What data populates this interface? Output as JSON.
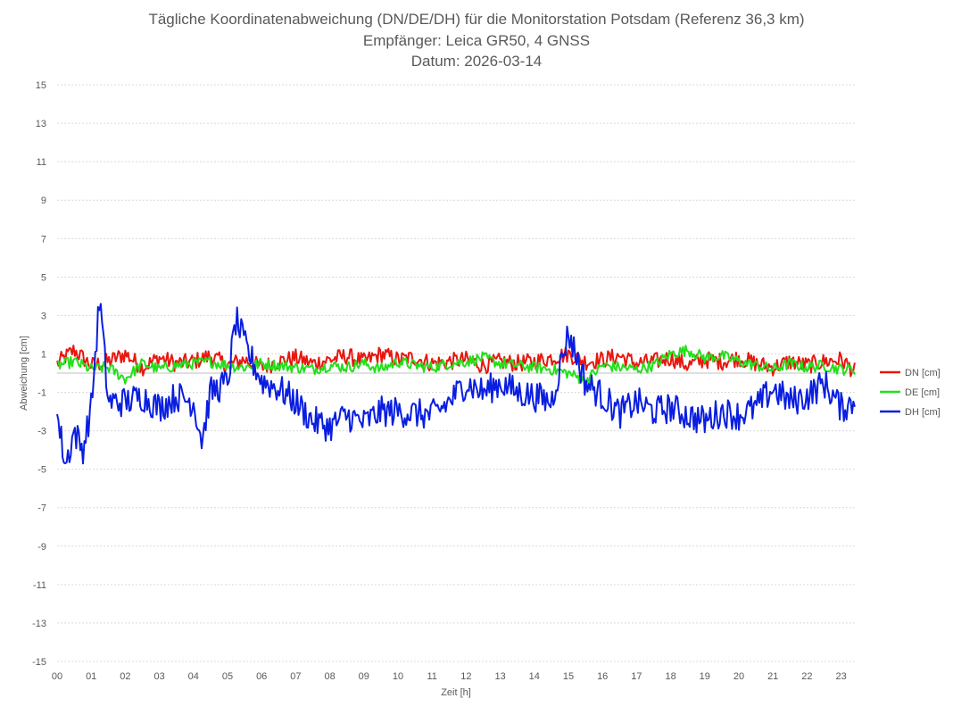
{
  "chart_data": {
    "type": "line",
    "title_lines": [
      "Tägliche Koordinatenabweichung (DN/DE/DH) für die Monitorstation Potsdam (Referenz 36,3 km)",
      "Empfänger: Leica GR50, 4 GNSS",
      "Datum: 2026-03-14"
    ],
    "xlabel": "Zeit [h]",
    "ylabel": "Abweichung [cm]",
    "xlim": [
      0,
      23.4
    ],
    "ylim": [
      -15,
      15
    ],
    "x_ticks": [
      "00",
      "01",
      "02",
      "03",
      "04",
      "05",
      "06",
      "07",
      "08",
      "09",
      "10",
      "11",
      "12",
      "13",
      "14",
      "15",
      "16",
      "17",
      "18",
      "19",
      "20",
      "21",
      "22",
      "23"
    ],
    "y_ticks": [
      15,
      13,
      11,
      9,
      7,
      5,
      3,
      1,
      -1,
      -3,
      -5,
      -7,
      -9,
      -11,
      -13,
      -15
    ],
    "grid": "horizontal-dotted",
    "legend_position": "right",
    "series": [
      {
        "name": "DN [cm]",
        "color": "#e8170f",
        "x": [
          0,
          0.5,
          1,
          1.5,
          2,
          2.5,
          3,
          3.5,
          4,
          4.5,
          5,
          5.5,
          6,
          6.5,
          7,
          7.5,
          8,
          8.5,
          9,
          9.5,
          10,
          10.5,
          11,
          11.5,
          12,
          12.5,
          13,
          13.5,
          14,
          14.5,
          15,
          15.5,
          16,
          16.5,
          17,
          17.5,
          18,
          18.5,
          19,
          19.5,
          20,
          20.5,
          21,
          21.5,
          22,
          22.5,
          23,
          23.4
        ],
        "values": [
          0.5,
          1.2,
          0.4,
          0.6,
          1.0,
          0.3,
          0.8,
          0.5,
          0.6,
          0.9,
          0.4,
          0.7,
          0.3,
          0.6,
          0.8,
          0.5,
          0.7,
          0.9,
          0.6,
          1.0,
          0.7,
          0.8,
          0.5,
          0.6,
          0.7,
          0.4,
          0.6,
          0.5,
          0.6,
          0.8,
          1.0,
          0.6,
          0.7,
          0.9,
          0.5,
          0.6,
          0.8,
          0.4,
          0.7,
          0.6,
          0.8,
          0.5,
          0.3,
          0.6,
          0.4,
          0.6,
          0.7,
          0.1
        ]
      },
      {
        "name": "DE [cm]",
        "color": "#22e01a",
        "x": [
          0,
          0.5,
          1,
          1.5,
          2,
          2.5,
          3,
          3.5,
          4,
          4.5,
          5,
          5.5,
          6,
          6.5,
          7,
          7.5,
          8,
          8.5,
          9,
          9.5,
          10,
          10.5,
          11,
          11.5,
          12,
          12.5,
          13,
          13.5,
          14,
          14.5,
          15,
          15.5,
          16,
          16.5,
          17,
          17.5,
          18,
          18.5,
          19,
          19.5,
          20,
          20.5,
          21,
          21.5,
          22,
          22.5,
          23,
          23.4
        ],
        "values": [
          0.4,
          0.6,
          0.2,
          0.3,
          -0.3,
          0.5,
          0.2,
          0.4,
          0.5,
          0.6,
          0.4,
          0.3,
          0.5,
          0.4,
          0.3,
          0.2,
          0.4,
          0.3,
          0.5,
          0.2,
          0.6,
          0.4,
          0.3,
          0.5,
          0.6,
          0.8,
          0.5,
          0.4,
          0.3,
          0.2,
          0.0,
          -0.4,
          0.4,
          0.3,
          0.2,
          0.4,
          1.0,
          1.2,
          0.8,
          0.9,
          0.6,
          0.4,
          0.2,
          0.5,
          0.3,
          0.4,
          0.2,
          0.2
        ]
      },
      {
        "name": "DH [cm]",
        "color": "#0a1ee0",
        "x": [
          0,
          0.25,
          0.5,
          0.75,
          1,
          1.25,
          1.5,
          2,
          2.5,
          3,
          3.5,
          4,
          4.25,
          4.5,
          5,
          5.25,
          5.5,
          6,
          6.5,
          7,
          7.5,
          8,
          8.5,
          9,
          9.5,
          10,
          10.5,
          11,
          11.5,
          12,
          12.5,
          13,
          13.5,
          14,
          14.5,
          15,
          15.5,
          16,
          16.5,
          17,
          17.5,
          18,
          18.5,
          19,
          19.5,
          20,
          20.5,
          21,
          21.5,
          22,
          22.5,
          23,
          23.4
        ],
        "values": [
          -2.2,
          -4.8,
          -3.0,
          -4.0,
          -1.8,
          3.9,
          -1.5,
          -1.5,
          -1.2,
          -1.8,
          -1.2,
          -1.5,
          -3.5,
          -1.0,
          -0.5,
          2.8,
          1.5,
          -0.4,
          -0.8,
          -1.5,
          -2.5,
          -2.8,
          -2.2,
          -2.6,
          -2.0,
          -2.0,
          -2.1,
          -2.2,
          -1.5,
          -0.5,
          -1.0,
          -0.5,
          -1.0,
          -1.2,
          -1.5,
          2.1,
          -0.5,
          -1.2,
          -2.1,
          -1.5,
          -2.0,
          -1.8,
          -2.2,
          -2.5,
          -2.0,
          -2.2,
          -1.8,
          -0.8,
          -1.5,
          -1.2,
          -0.5,
          -1.8,
          -1.5
        ]
      }
    ]
  }
}
